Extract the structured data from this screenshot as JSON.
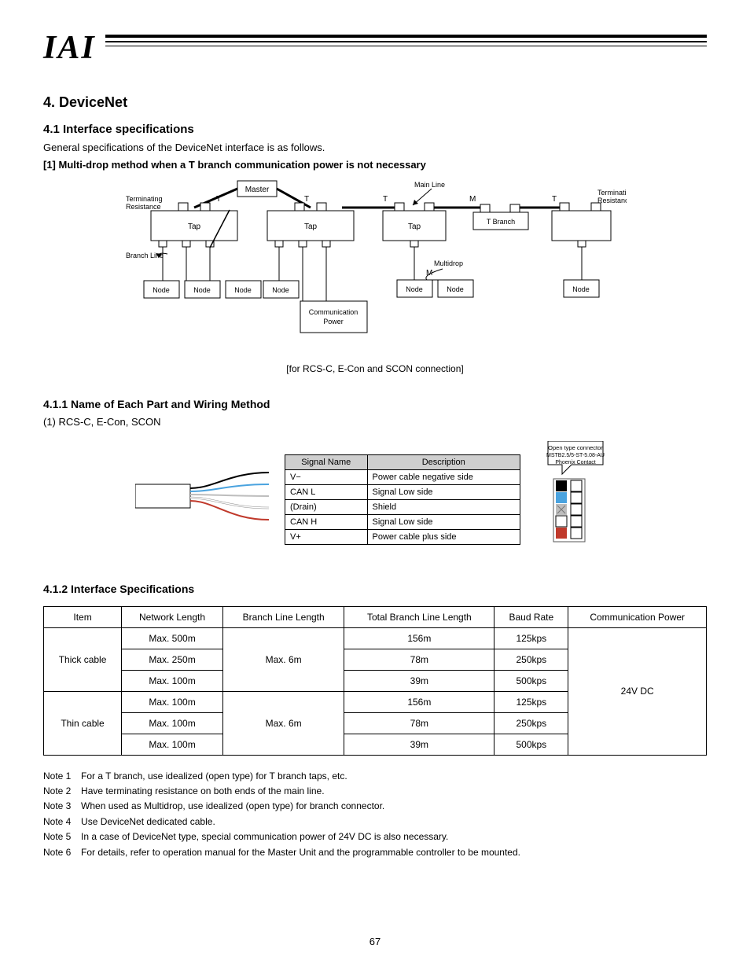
{
  "page_number": "67",
  "section_title": "4. DeviceNet",
  "subsection1_title": "4.1 Interface specifications",
  "intro_para": "General specifications of the DeviceNet interface is as follows.",
  "multidrop_title": "[1] Multi-drop method when a T branch communication power is not necessary",
  "caption": "[for RCS-C, E-Con and SCON connection]",
  "diagram": {
    "nodes": {
      "master": "Master",
      "tap1": "Tap",
      "tap2": "Tap",
      "tap3": "Tap",
      "tbranch": "T Branch",
      "node1": "Node",
      "node2": "Node",
      "node3": "Node",
      "node4": "Node",
      "power": "Communication\nPower",
      "node5": "Node",
      "node6": "Node",
      "node7": "Node"
    },
    "labels": {
      "terminating_top": "Terminating\nResistance",
      "terminating_bottom": "Terminating\nResistance",
      "branch_line": "Branch Line",
      "main_line": "Main Line",
      "multidrop": "Multidrop"
    },
    "edge_labels": [
      "T",
      "T",
      "T",
      "M",
      "T",
      "M"
    ]
  },
  "signal_title": "4.1.1 Name of Each Part and Wiring Method",
  "signal_intro": "(1) RCS-C, E-Con, SCON",
  "connector_note": "Open type connector\nMSTB2.5/5-ST-5.08-AU\nmade by Phoenix Contact",
  "signal_table": {
    "headers": [
      "Signal Name",
      "Description"
    ],
    "rows": [
      [
        "V−",
        "Power cable negative side"
      ],
      [
        "CAN L",
        "Signal Low side"
      ],
      [
        "(Drain)",
        "Shield"
      ],
      [
        "CAN H",
        "Signal Low side"
      ],
      [
        "V+",
        "Power cable plus side"
      ]
    ]
  },
  "wire_colors": [
    "#000000",
    "#4aa3df",
    "#bdbdbd",
    "#ffffff",
    "#c0392b"
  ],
  "connector_left_fill": [
    "#000000",
    "#4aa3df",
    "#bdbdbd",
    "#ffffff",
    "#c0392b"
  ],
  "spec_title": "4.1.2 Interface Specifications",
  "spec_table": {
    "headers": [
      "Item",
      "Network Length",
      "Branch Line Length",
      "Total Branch Line Length",
      "Baud Rate",
      "Communication Power"
    ],
    "rows": [
      {
        "item": "Thick cable",
        "nets": [
          "Max. 500m",
          "Max. 250m",
          "Max. 100m"
        ],
        "branch": "Max. 6m",
        "total": [
          "156m",
          "78m",
          "39m"
        ],
        "baud": [
          "125kps",
          "250kps",
          "500kps"
        ],
        "power": "24V DC"
      },
      {
        "item": "Thin cable",
        "nets": [
          "Max. 100m",
          "Max. 100m",
          "Max. 100m"
        ],
        "branch": "Max. 6m",
        "total": [
          "156m",
          "78m",
          "39m"
        ],
        "baud": [
          "125kps",
          "250kps",
          "500kps"
        ],
        "power": "24V DC"
      }
    ]
  },
  "notes": [
    "Note 1   For a T branch, use idealized (open type) for T branch taps, etc.",
    "Note 2   Have terminating resistance on both ends of the main line.",
    "Note 3   When used as Multidrop, use idealized (open type) for branch connector.",
    "Note 4   Use DeviceNet dedicated cable.",
    "Note 5   In a case of DeviceNet type, special communication power of 24V DC is also necessary.",
    "Note 6   For details, refer to operation manual for the Master Unit and the programmable controller to be mounted."
  ]
}
